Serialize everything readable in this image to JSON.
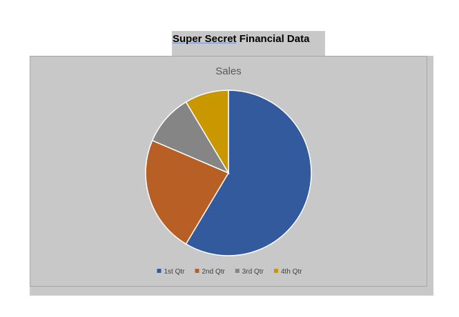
{
  "document": {
    "heading_part1": "Super Secret",
    "heading_part2": " Financial Data"
  },
  "colors": {
    "series": [
      "#335a9c",
      "#b75f25",
      "#858585",
      "#c99801"
    ],
    "background": "#c8c8c8"
  },
  "chart_data": {
    "type": "pie",
    "title": "Sales",
    "categories": [
      "1st Qtr",
      "2nd Qtr",
      "3rd Qtr",
      "4th Qtr"
    ],
    "values": [
      8.2,
      3.2,
      1.4,
      1.2
    ],
    "legend": "bottom"
  }
}
